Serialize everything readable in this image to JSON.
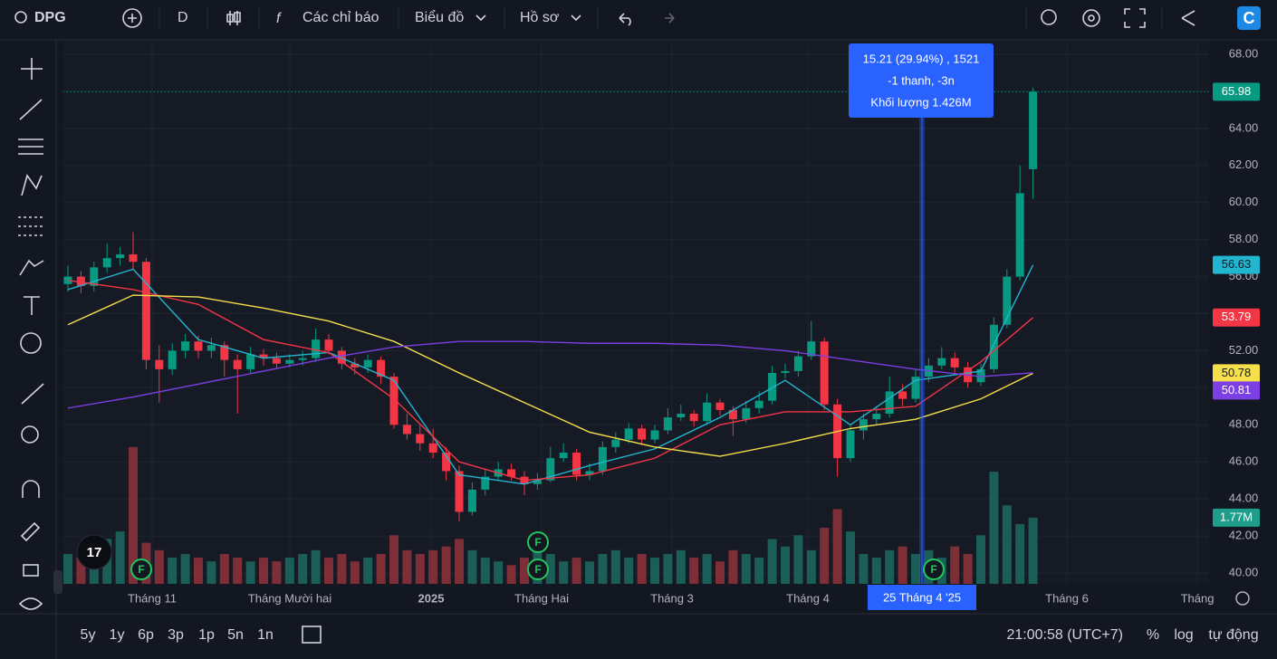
{
  "toolbar": {
    "symbol": "DPG",
    "interval": "D",
    "indicators": "Các chỉ báo",
    "chart_menu": "Biểu đồ",
    "profile": "Hồ sơ"
  },
  "chart_data": {
    "type": "candlestick",
    "up_color": "#089981",
    "down_color": "#f23645",
    "volume_up_color": "#1b5e57",
    "volume_down_color": "#7d2e37",
    "ylim": [
      40,
      68
    ],
    "yticks": [
      {
        "value": 40,
        "label": "40.00"
      },
      {
        "value": 42,
        "label": "42.00"
      },
      {
        "value": 44,
        "label": "44.00"
      },
      {
        "value": 46,
        "label": "46.00"
      },
      {
        "value": 48,
        "label": "48.00"
      },
      {
        "value": 50,
        "label": "50.00"
      },
      {
        "value": 52,
        "label": "52.00"
      },
      {
        "value": 54,
        "label": "54.00"
      },
      {
        "value": 56,
        "label": "56.00"
      },
      {
        "value": 58,
        "label": "58.00"
      },
      {
        "value": 60,
        "label": "60.00"
      },
      {
        "value": 62,
        "label": "62.00"
      },
      {
        "value": 64,
        "label": "64.00"
      },
      {
        "value": 66,
        "label": "66.00"
      },
      {
        "value": 68,
        "label": "68.00"
      }
    ],
    "volume_ylim": [
      0,
      14.5
    ],
    "ohlc": [
      [
        55.6,
        56.6,
        55.2,
        56
      ],
      [
        56,
        56.3,
        55.1,
        55.5
      ],
      [
        55.5,
        56.8,
        55.2,
        56.5
      ],
      [
        56.5,
        57.8,
        56.2,
        57
      ],
      [
        57,
        57.6,
        56.6,
        57.2
      ],
      [
        57.2,
        58.4,
        56.4,
        56.8
      ],
      [
        56.8,
        57,
        51,
        51.5
      ],
      [
        51.5,
        52.3,
        49.2,
        51
      ],
      [
        51,
        52.4,
        50.7,
        52
      ],
      [
        52,
        52.9,
        51.6,
        52.5
      ],
      [
        52.5,
        52.8,
        51.6,
        52
      ],
      [
        52,
        52.7,
        51.6,
        52.3
      ],
      [
        52.3,
        52.5,
        50.6,
        51.5
      ],
      [
        51.5,
        51.8,
        48.6,
        51
      ],
      [
        51,
        52.2,
        50.8,
        51.8
      ],
      [
        51.8,
        52.1,
        51.2,
        51.6
      ],
      [
        51.6,
        51.9,
        51,
        51.3
      ],
      [
        51.3,
        51.8,
        51.1,
        51.5
      ],
      [
        51.5,
        52,
        51.2,
        51.6
      ],
      [
        51.6,
        53.2,
        51.4,
        52.6
      ],
      [
        52.6,
        52.9,
        51.8,
        52
      ],
      [
        52,
        52.2,
        51,
        51.3
      ],
      [
        51.3,
        51.6,
        50.7,
        51.1
      ],
      [
        51.1,
        51.8,
        50.8,
        51.5
      ],
      [
        51.5,
        51.7,
        50.2,
        50.6
      ],
      [
        50.6,
        50.8,
        47.8,
        48
      ],
      [
        48,
        48.6,
        47.2,
        47.5
      ],
      [
        47.5,
        48,
        46.6,
        47
      ],
      [
        47,
        47.8,
        46.2,
        46.5
      ],
      [
        46.5,
        46.8,
        45,
        45.5
      ],
      [
        45.5,
        45.8,
        42.8,
        43.3
      ],
      [
        43.3,
        44.9,
        43.1,
        44.5
      ],
      [
        44.5,
        45.6,
        44.2,
        45.2
      ],
      [
        45.2,
        46,
        45,
        45.6
      ],
      [
        45.6,
        45.9,
        45,
        45.2
      ],
      [
        45.2,
        45.5,
        44.2,
        44.8
      ],
      [
        44.8,
        45.4,
        44.5,
        45
      ],
      [
        45,
        46.8,
        44.9,
        46.2
      ],
      [
        46.2,
        47,
        46,
        46.5
      ],
      [
        46.5,
        46.7,
        45,
        45.3
      ],
      [
        45.3,
        45.9,
        45,
        45.5
      ],
      [
        45.5,
        47.1,
        45.3,
        46.8
      ],
      [
        46.8,
        47.6,
        46.5,
        47.2
      ],
      [
        47.2,
        48.1,
        47,
        47.8
      ],
      [
        47.8,
        48,
        46.9,
        47.2
      ],
      [
        47.2,
        48,
        47,
        47.7
      ],
      [
        47.7,
        48.9,
        47.5,
        48.4
      ],
      [
        48.4,
        49.1,
        48.2,
        48.6
      ],
      [
        48.6,
        48.8,
        47.9,
        48.2
      ],
      [
        48.2,
        49.7,
        48,
        49.2
      ],
      [
        49.2,
        49.4,
        48.5,
        48.8
      ],
      [
        48.8,
        49,
        47.4,
        48.3
      ],
      [
        48.3,
        49.3,
        48.1,
        48.9
      ],
      [
        48.9,
        49.8,
        48.6,
        49.3
      ],
      [
        49.3,
        51.2,
        49.1,
        50.8
      ],
      [
        50.8,
        51.3,
        50.5,
        50.9
      ],
      [
        50.9,
        52,
        50.6,
        51.7
      ],
      [
        51.7,
        53.6,
        51.5,
        52.5
      ],
      [
        52.5,
        52.7,
        48.8,
        49.1
      ],
      [
        49.1,
        49.4,
        45.2,
        46.2
      ],
      [
        46.2,
        48,
        46,
        47.7
      ],
      [
        47.7,
        48.6,
        47.2,
        48.3
      ],
      [
        48.3,
        49,
        48,
        48.6
      ],
      [
        48.6,
        50.6,
        48.4,
        49.8
      ],
      [
        49.8,
        50.2,
        49,
        49.4
      ],
      [
        49.4,
        51,
        49.2,
        50.6
      ],
      [
        50.6,
        51.6,
        50.3,
        51.2
      ],
      [
        51.2,
        52.2,
        51,
        51.6
      ],
      [
        51.6,
        51.9,
        50.8,
        51.1
      ],
      [
        51.1,
        51.4,
        50,
        50.3
      ],
      [
        50.3,
        51.3,
        50.1,
        51
      ],
      [
        51,
        53.8,
        50.8,
        53.4
      ],
      [
        53.4,
        56.4,
        53.2,
        56
      ],
      [
        56,
        62,
        55.8,
        60.5
      ],
      [
        61.8,
        66.2,
        60.2,
        65.98
      ]
    ],
    "volume": [
      0.8,
      0.7,
      0.9,
      1.2,
      1.4,
      3.66,
      1.1,
      0.9,
      0.7,
      0.8,
      0.7,
      0.6,
      0.8,
      0.7,
      0.6,
      0.7,
      0.6,
      0.7,
      0.8,
      0.9,
      0.7,
      0.8,
      0.6,
      0.7,
      0.8,
      1.3,
      0.9,
      0.8,
      0.9,
      1.0,
      1.2,
      0.9,
      0.7,
      0.6,
      0.5,
      0.7,
      0.9,
      0.8,
      0.6,
      0.7,
      0.6,
      0.8,
      0.9,
      0.7,
      0.8,
      0.7,
      0.8,
      0.9,
      0.7,
      0.8,
      0.6,
      0.9,
      0.8,
      0.7,
      1.2,
      1.0,
      1.3,
      0.9,
      1.5,
      2.0,
      1.4,
      0.8,
      0.7,
      0.9,
      1.0,
      0.8,
      0.9,
      0.7,
      1.0,
      0.8,
      1.3,
      3.0,
      2.1,
      1.6,
      1.77
    ],
    "ma_x": [
      0,
      5,
      10,
      15,
      20,
      25,
      30,
      35,
      40,
      45,
      50,
      55,
      60,
      65,
      70,
      74
    ],
    "ma": [
      {
        "color": "#22b5d0",
        "values": [
          55.3,
          56.4,
          52.6,
          51.6,
          51.9,
          50.4,
          45.3,
          44.8,
          45.8,
          46.7,
          48.4,
          50.4,
          48,
          50.4,
          50.9,
          56.63
        ]
      },
      {
        "color": "#f23645",
        "values": [
          55.8,
          55.3,
          54.5,
          52.6,
          51.9,
          49.4,
          46,
          45,
          45.3,
          46.2,
          48,
          48.7,
          48.7,
          49,
          51.4,
          53.79
        ]
      },
      {
        "color": "#f5e04b",
        "values": [
          53.4,
          55,
          54.9,
          54.3,
          53.6,
          52.5,
          50.8,
          49.2,
          47.6,
          46.8,
          46.3,
          47,
          47.8,
          48.3,
          49.4,
          50.78
        ]
      },
      {
        "color": "#7b3fe4",
        "values": [
          48.9,
          49.5,
          50.2,
          50.9,
          51.6,
          52.2,
          52.5,
          52.5,
          52.4,
          52.4,
          52.3,
          52,
          51.5,
          51,
          50.6,
          50.81
        ]
      }
    ],
    "price_tags": [
      {
        "value": 65.98,
        "color": "#089981",
        "text_color": "#ffffff"
      },
      {
        "value": 56.63,
        "color": "#22b5d0",
        "text_color": "#131722"
      },
      {
        "value": 53.79,
        "color": "#f23645",
        "text_color": "#ffffff"
      },
      {
        "value": 50.78,
        "color": "#f5e04b",
        "text_color": "#131722"
      },
      {
        "value": 50.81,
        "color": "#7b3fe4",
        "text_color": "#ffffff"
      }
    ],
    "volume_tag": {
      "value": 1.77,
      "label": "1.77M",
      "color": "#1e9e8a"
    },
    "x_axis_labels": [
      "Tháng 11",
      "Tháng Mười hai",
      "2025",
      "Tháng Hai",
      "Tháng 3",
      "Tháng 4",
      "Tháng 6",
      "Tháng"
    ],
    "crosshair_label": "25 Tháng 4 '25",
    "tooltip": [
      "15.21 (29.94%) , 1521",
      "-1 thanh, -3n",
      "Khối lượng 1.426M"
    ],
    "events": [
      "F",
      "F",
      "F",
      "F"
    ]
  },
  "bottom_bar": {
    "ranges": [
      "5y",
      "1y",
      "6p",
      "3p",
      "1p",
      "5n",
      "1n"
    ],
    "time": "21:00:58 (UTC+7)",
    "percent": "%",
    "log": "log",
    "auto": "tự động"
  }
}
